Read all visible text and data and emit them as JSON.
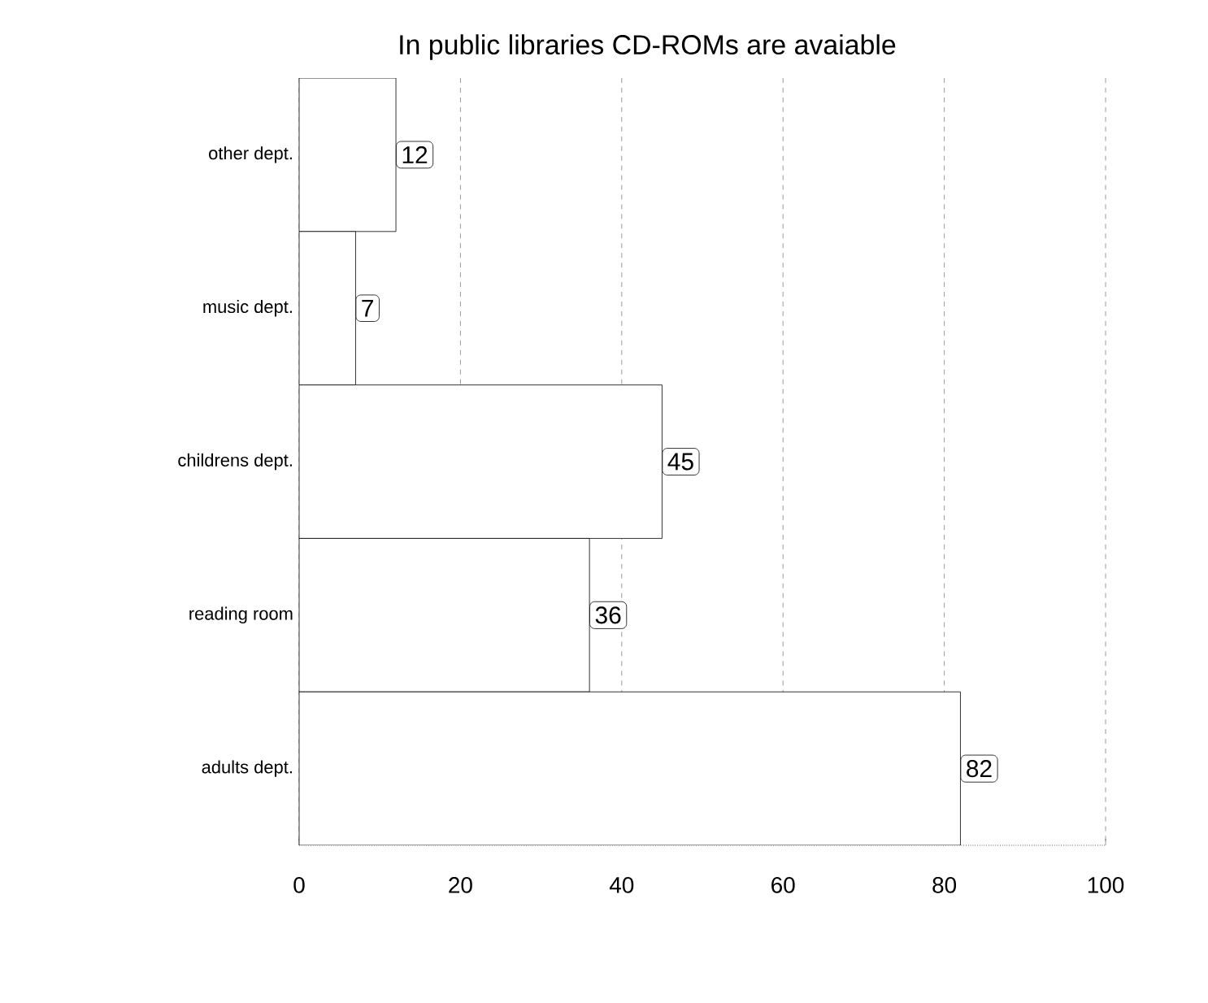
{
  "chart_data": {
    "type": "bar",
    "orientation": "horizontal",
    "title": "In public libraries CD-ROMs are avaiable",
    "categories": [
      "other dept.",
      "music dept.",
      "childrens dept.",
      "reading room",
      "adults dept."
    ],
    "values": [
      12,
      7,
      45,
      36,
      82
    ],
    "color": "#ffffff",
    "xlim": [
      0,
      100
    ],
    "xticks": [
      0,
      20,
      40,
      60,
      80,
      100
    ],
    "grid": "x",
    "data_labels": true
  }
}
